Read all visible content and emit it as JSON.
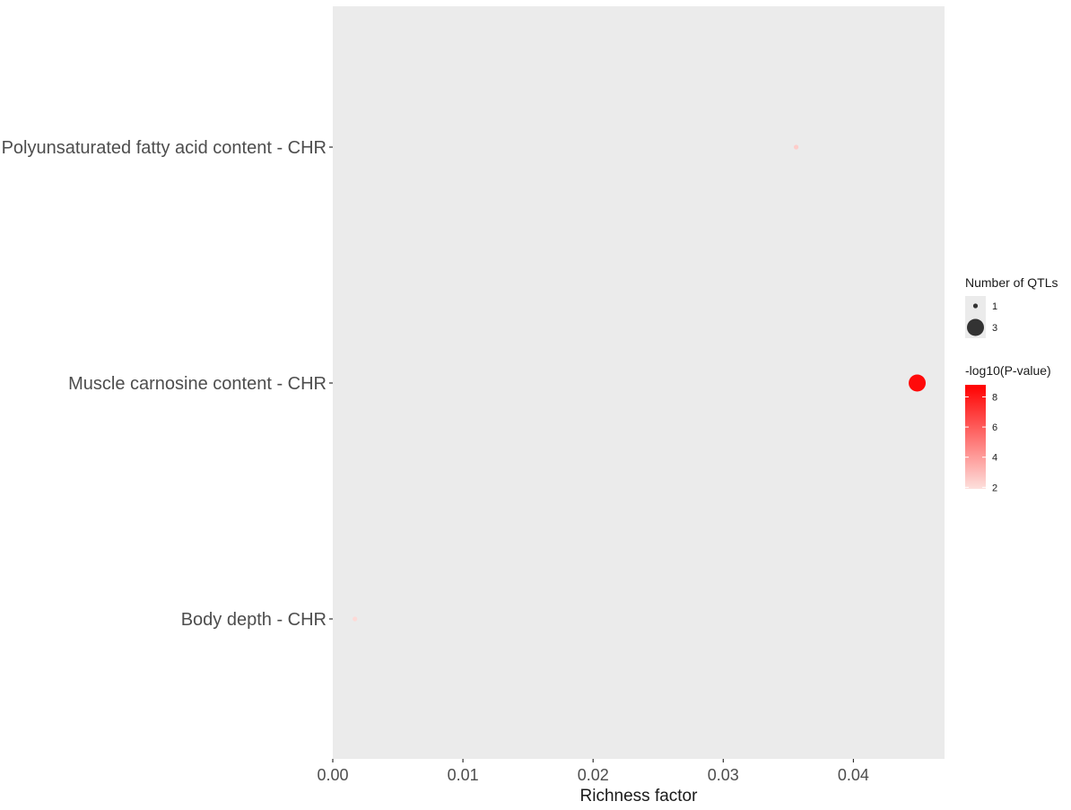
{
  "chart_data": {
    "type": "scatter",
    "xlabel": "Richness factor",
    "xlim": [
      0,
      0.047
    ],
    "x_ticks": [
      "0.00",
      "0.01",
      "0.02",
      "0.03",
      "0.04"
    ],
    "x_tick_values": [
      0,
      0.01,
      0.02,
      0.03,
      0.04
    ],
    "categories": [
      "Polyunsaturated fatty acid content - CHR",
      "Muscle carnosine content - CHR",
      "Body depth - CHR"
    ],
    "points": [
      {
        "category": "Polyunsaturated fatty acid content - CHR",
        "x": 0.0356,
        "qtls": 1,
        "neglog10p": 2.5
      },
      {
        "category": "Muscle carnosine content - CHR",
        "x": 0.0449,
        "qtls": 3,
        "neglog10p": 8.5
      },
      {
        "category": "Body depth - CHR",
        "x": 0.0017,
        "qtls": 1,
        "neglog10p": 2.1
      }
    ],
    "grid": false,
    "panel_background": "#ebebeb",
    "legend_position": "right",
    "size_legend": {
      "title": "Number of QTLs",
      "values": [
        1,
        3
      ],
      "labels": [
        "1",
        "3"
      ]
    },
    "color_legend": {
      "title": "-log10(P-value)",
      "range": [
        1.9,
        8.8
      ],
      "ticks": [
        2,
        4,
        6,
        8
      ],
      "tick_labels": [
        "2",
        "4",
        "6",
        "8"
      ],
      "low_color": "#fde0dd",
      "high_color": "#ff0000"
    }
  }
}
